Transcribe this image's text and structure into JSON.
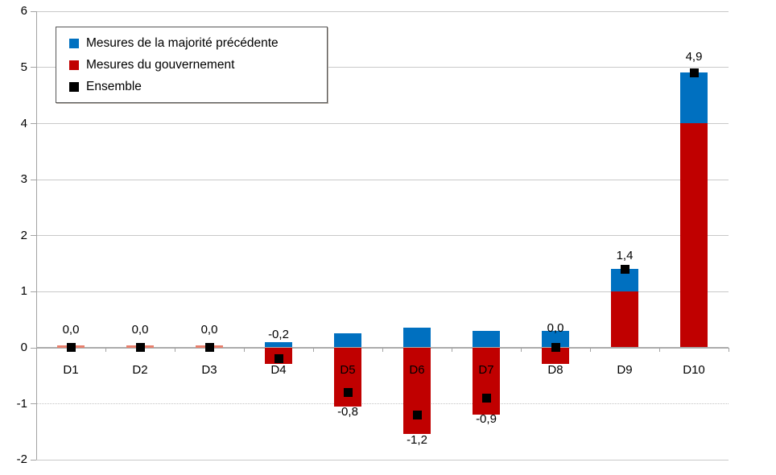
{
  "chart_data": {
    "type": "bar",
    "subtype": "stacked-bars-with-marker-overlay",
    "title": "",
    "xlabel": "",
    "ylabel": "",
    "categories": [
      "D1",
      "D2",
      "D3",
      "D4",
      "D5",
      "D6",
      "D7",
      "D8",
      "D9",
      "D10"
    ],
    "series": [
      {
        "name": "Mesures de la majorité précédente",
        "type": "bar",
        "color": "#0070C0",
        "values": [
          0,
          0,
          0,
          0.1,
          0.25,
          0.35,
          0.3,
          0.3,
          0.4,
          0.9
        ]
      },
      {
        "name": "Mesures du gouvernement",
        "type": "bar",
        "color": "#C00000",
        "values": [
          -0.02,
          -0.02,
          -0.02,
          -0.3,
          -1.05,
          -1.55,
          -1.2,
          -0.3,
          1.0,
          4.0
        ]
      },
      {
        "name": "Ensemble",
        "type": "marker",
        "color": "#000000",
        "values": [
          0.0,
          0.0,
          0.0,
          -0.2,
          -0.8,
          -1.2,
          -0.9,
          0.0,
          1.4,
          4.9
        ]
      }
    ],
    "data_labels": [
      "0,0",
      "0,0",
      "0,0",
      "-0,2",
      "-0,8",
      "-1,2",
      "-0,9",
      "0,0",
      "1,4",
      "4,9"
    ],
    "ylim": [
      -2,
      6
    ],
    "yticks": [
      6,
      5,
      4,
      3,
      2,
      1,
      0,
      -1,
      -2
    ],
    "grid": true,
    "legend_position": "top-left-inside",
    "colors": {
      "blue": "#0070C0",
      "red": "#C00000",
      "marker_black": "#000000",
      "tiny_bar_salmon": "#E8806D",
      "gridline": "#C9C9C9",
      "axis_line": "#A3A3A3"
    }
  }
}
